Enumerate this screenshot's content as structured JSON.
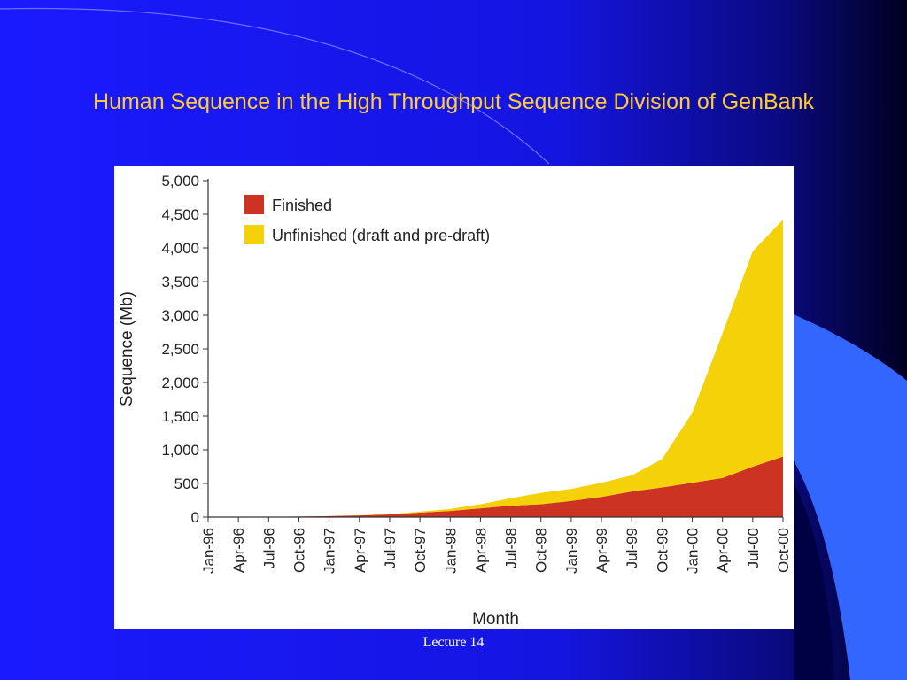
{
  "slide": {
    "title": "Human Sequence in the High Throughput Sequence Division of GenBank",
    "footer": "Lecture 14",
    "colors": {
      "background": "#1a1aff",
      "dark_edge": "#000033",
      "accent": "#3366ff",
      "title": "#ffcc33"
    }
  },
  "chart_data": {
    "type": "area",
    "stacked": true,
    "title": "",
    "xlabel": "Month",
    "ylabel": "Sequence (Mb)",
    "ylim": [
      0,
      5000
    ],
    "yticks": [
      "0",
      "500",
      "1,000",
      "1,500",
      "2,000",
      "2,500",
      "3,000",
      "3,500",
      "4,000",
      "4,500",
      "5,000"
    ],
    "ytick_values": [
      0,
      500,
      1000,
      1500,
      2000,
      2500,
      3000,
      3500,
      4000,
      4500,
      5000
    ],
    "categories": [
      "Jan-96",
      "Apr-96",
      "Jul-96",
      "Oct-96",
      "Jan-97",
      "Apr-97",
      "Jul-97",
      "Oct-97",
      "Jan-98",
      "Apr-98",
      "Jul-98",
      "Oct-98",
      "Jan-99",
      "Apr-99",
      "Jul-99",
      "Oct-99",
      "Jan-00",
      "Apr-00",
      "Jul-00",
      "Oct-00"
    ],
    "grid": false,
    "legend_position": "top-left",
    "series": [
      {
        "name": "Finished",
        "color": "#cc3322",
        "values": [
          0,
          2,
          5,
          8,
          15,
          25,
          40,
          65,
          90,
          130,
          170,
          190,
          240,
          300,
          380,
          440,
          510,
          580,
          750,
          900
        ]
      },
      {
        "name": "Unfinished (draft and pre-draft)",
        "color": "#f5d10a",
        "values": [
          0,
          0,
          0,
          0,
          0,
          2,
          5,
          15,
          30,
          60,
          110,
          170,
          180,
          210,
          240,
          420,
          1040,
          2150,
          3200,
          3520
        ]
      }
    ]
  }
}
